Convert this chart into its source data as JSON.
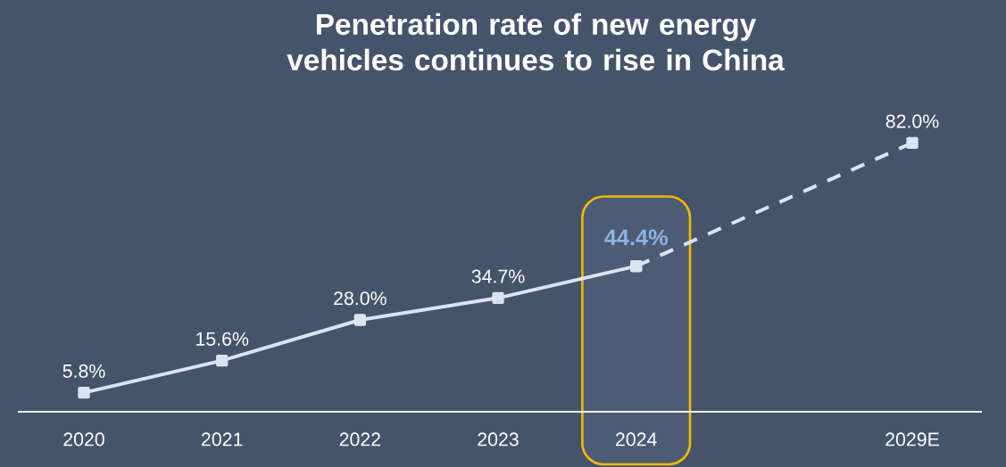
{
  "chart_data": {
    "type": "line",
    "title": "Penetration rate of new energy vehicles continues to rise in China",
    "categories": [
      "2020",
      "2021",
      "2022",
      "2023",
      "2024",
      null,
      "2029E"
    ],
    "series": [
      {
        "color": "#dce3f3",
        "values": [
          5.8,
          15.6,
          28.0,
          34.7,
          44.4,
          null,
          null
        ],
        "line_style": "solid",
        "value_labels": [
          "5.8%",
          "15.6%",
          "28.0%",
          "34.7%",
          "44.4%",
          null,
          null
        ]
      },
      {
        "color": "#dce3f3",
        "values": [
          null,
          null,
          null,
          null,
          44.4,
          null,
          82.0
        ],
        "line_style": "dashed",
        "value_labels": [
          null,
          null,
          null,
          null,
          null,
          null,
          "82.0%"
        ]
      }
    ],
    "bands": [
      {
        "axis": "x",
        "from": "2024",
        "to": "2024"
      }
    ],
    "marker": "square",
    "tick_labels": "x"
  }
}
